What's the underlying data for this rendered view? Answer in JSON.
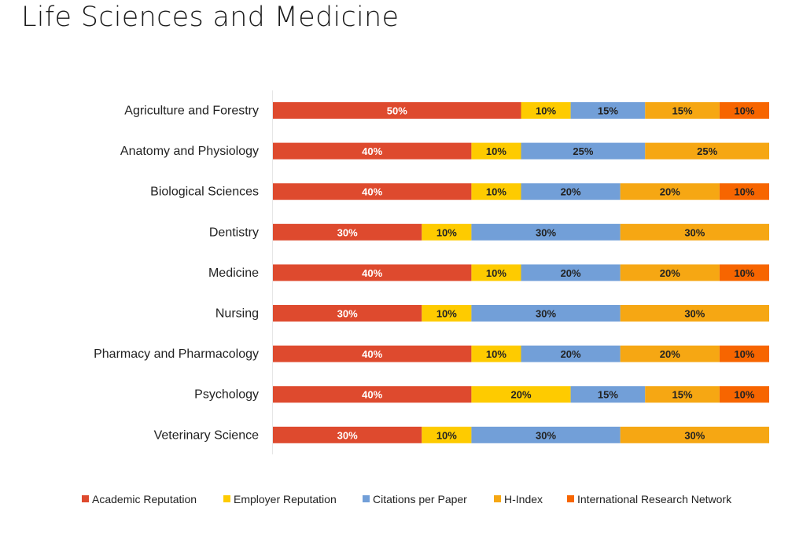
{
  "title": "Life Sciences and Medicine",
  "chart_data": {
    "type": "bar",
    "orientation": "horizontal",
    "stacked": true,
    "title": "Life Sciences and Medicine",
    "xlabel": "",
    "ylabel": "",
    "xlim": [
      0,
      100
    ],
    "grid": false,
    "legend_position": "bottom",
    "categories": [
      "Agriculture and Forestry",
      "Anatomy and Physiology",
      "Biological Sciences",
      "Dentistry",
      "Medicine",
      "Nursing",
      "Pharmacy and Pharmacology",
      "Psychology",
      "Veterinary Science"
    ],
    "series": [
      {
        "name": "Academic Reputation",
        "color": "#de4a2e",
        "label_color": "#ffffff",
        "values": [
          50,
          40,
          40,
          30,
          40,
          30,
          40,
          40,
          30
        ]
      },
      {
        "name": "Employer Reputation",
        "color": "#fecb00",
        "label_color": "#222222",
        "values": [
          10,
          10,
          10,
          10,
          10,
          10,
          10,
          20,
          10
        ]
      },
      {
        "name": "Citations per Paper",
        "color": "#729fd8",
        "label_color": "#222222",
        "values": [
          15,
          25,
          20,
          30,
          20,
          30,
          20,
          15,
          30
        ]
      },
      {
        "name": "H-Index",
        "color": "#f6a713",
        "label_color": "#222222",
        "values": [
          15,
          25,
          20,
          30,
          20,
          30,
          20,
          15,
          30
        ]
      },
      {
        "name": "International Research Network",
        "color": "#f76500",
        "label_color": "#222222",
        "values": [
          10,
          0,
          10,
          0,
          10,
          0,
          10,
          10,
          0
        ]
      }
    ],
    "value_suffix": "%"
  }
}
